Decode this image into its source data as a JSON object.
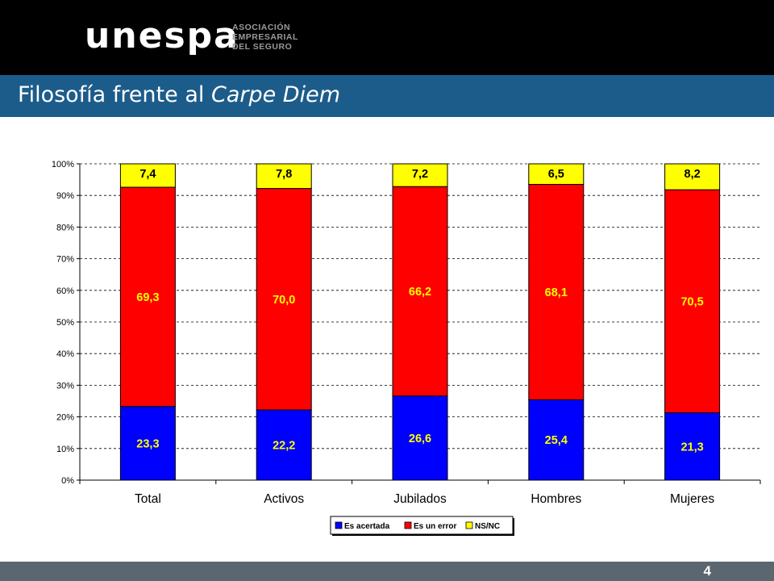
{
  "header": {
    "logo_text": "unespa",
    "logo_sub": [
      "ASOCIACIÓN",
      "EMPRESARIAL",
      "DEL SEGURO"
    ]
  },
  "title": {
    "prefix": "Filosofía frente al ",
    "italic": "Carpe Diem"
  },
  "footer": {
    "page_number": "4"
  },
  "colors": {
    "topbar": "#000000",
    "titlebar": "#1c5c8a",
    "footer": "#5b6770",
    "acertada": "#0000ff",
    "error": "#ff0000",
    "nsnc": "#ffff00"
  },
  "chart_data": {
    "type": "bar",
    "stacked": true,
    "categories": [
      "Total",
      "Activos",
      "Jubilados",
      "Hombres",
      "Mujeres"
    ],
    "series": [
      {
        "name": "Es acertada",
        "values": [
          23.3,
          22.2,
          26.6,
          25.4,
          21.3
        ],
        "labels": [
          "23,3",
          "22,2",
          "26,6",
          "25,4",
          "21,3"
        ],
        "color": "#0000ff",
        "label_color": "#ffff00"
      },
      {
        "name": "Es un error",
        "values": [
          69.3,
          70.0,
          66.2,
          68.1,
          70.5
        ],
        "labels": [
          "69,3",
          "70,0",
          "66,2",
          "68,1",
          "70,5"
        ],
        "color": "#ff0000",
        "label_color": "#ffff00"
      },
      {
        "name": "NS/NC",
        "values": [
          7.4,
          7.8,
          7.2,
          6.5,
          8.2
        ],
        "labels": [
          "7,4",
          "7,8",
          "7,2",
          "6,5",
          "8,2"
        ],
        "color": "#ffff00",
        "label_color": "#000000"
      }
    ],
    "yticks": [
      "0%",
      "10%",
      "20%",
      "30%",
      "40%",
      "50%",
      "60%",
      "70%",
      "80%",
      "90%",
      "100%"
    ],
    "ylim": [
      0,
      100
    ],
    "grid": true,
    "legend_position": "bottom"
  }
}
